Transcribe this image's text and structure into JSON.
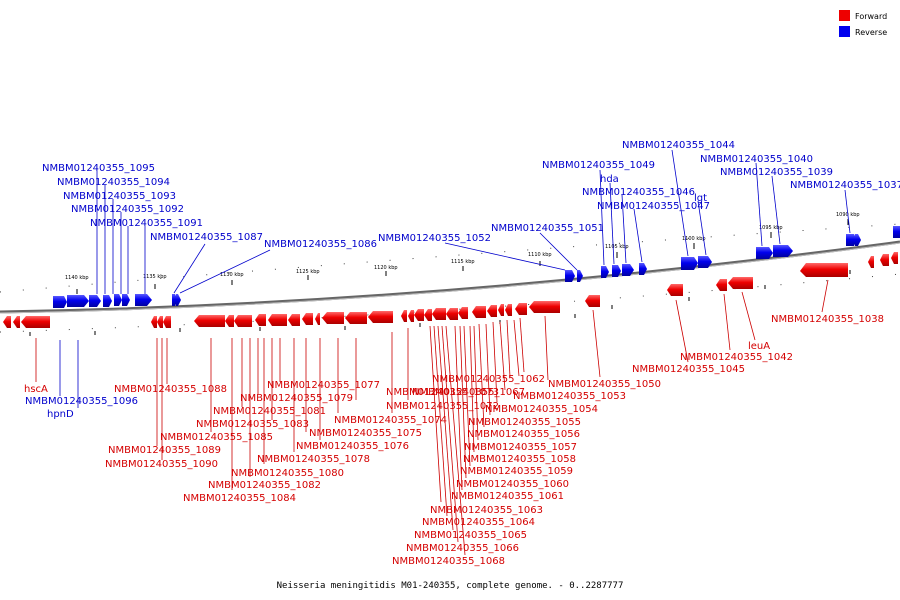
{
  "caption": "Neisseria meningitidis M01-240355, complete genome. - 0..2287777",
  "legend": [
    {
      "label": "Forward",
      "color": "#ee0000"
    },
    {
      "label": "Reverse",
      "color": "#0000ee"
    }
  ],
  "ticks": [
    "1140 kbp",
    "1135 kbp",
    "1130 kbp",
    "1125 kbp",
    "1120 kbp",
    "1115 kbp",
    "1110 kbp",
    "1105 kbp",
    "1100 kbp",
    "1095 kbp",
    "1090 kbp"
  ],
  "reverse_labels": [
    "NMBM01240355_1095",
    "NMBM01240355_1094",
    "NMBM01240355_1093",
    "NMBM01240355_1092",
    "NMBM01240355_1091",
    "NMBM01240355_1087",
    "NMBM01240355_1086",
    "NMBM01240355_1052",
    "NMBM01240355_1051",
    "NMBM01240355_1049",
    "hda",
    "NMBM01240355_1046",
    "NMBM01240355_1047",
    "lgt",
    "NMBM01240355_1044",
    "NMBM01240355_1040",
    "NMBM01240355_1039",
    "NMBM01240355_1037",
    "NMBM01240355_1096",
    "hpnD"
  ],
  "forward_labels": [
    "hscA",
    "NMBM01240355_1088",
    "NMBM01240355_1089",
    "NMBM01240355_1090",
    "NMBM01240355_1085",
    "NMBM01240355_1083",
    "NMBM01240355_1081",
    "NMBM01240355_1079",
    "NMBM01240355_1077",
    "NMBM01240355_1080",
    "NMBM01240355_1082",
    "NMBM01240355_1084",
    "NMBM01240355_1078",
    "NMBM01240355_1076",
    "NMBM01240355_1075",
    "NMBM01240355_1074",
    "NMBM01240355_1073",
    "NMBM01240355_1072",
    "NMBM01240355_1067",
    "NMBM01240355_1062",
    "NMBM01240355_1053",
    "NMBM01240355_1054",
    "NMBM01240355_1055",
    "NMBM01240355_1056",
    "NMBM01240355_1057",
    "NMBM01240355_1058",
    "NMBM01240355_1059",
    "NMBM01240355_1060",
    "NMBM01240355_1061",
    "NMBM01240355_1063",
    "NMBM01240355_1064",
    "NMBM01240355_1065",
    "NMBM01240355_1066",
    "NMBM01240355_1068",
    "NMBM01240355_1050",
    "NMBM01240355_1045",
    "NMBM01240355_1042",
    "leuA",
    "NMBM01240355_1038"
  ]
}
